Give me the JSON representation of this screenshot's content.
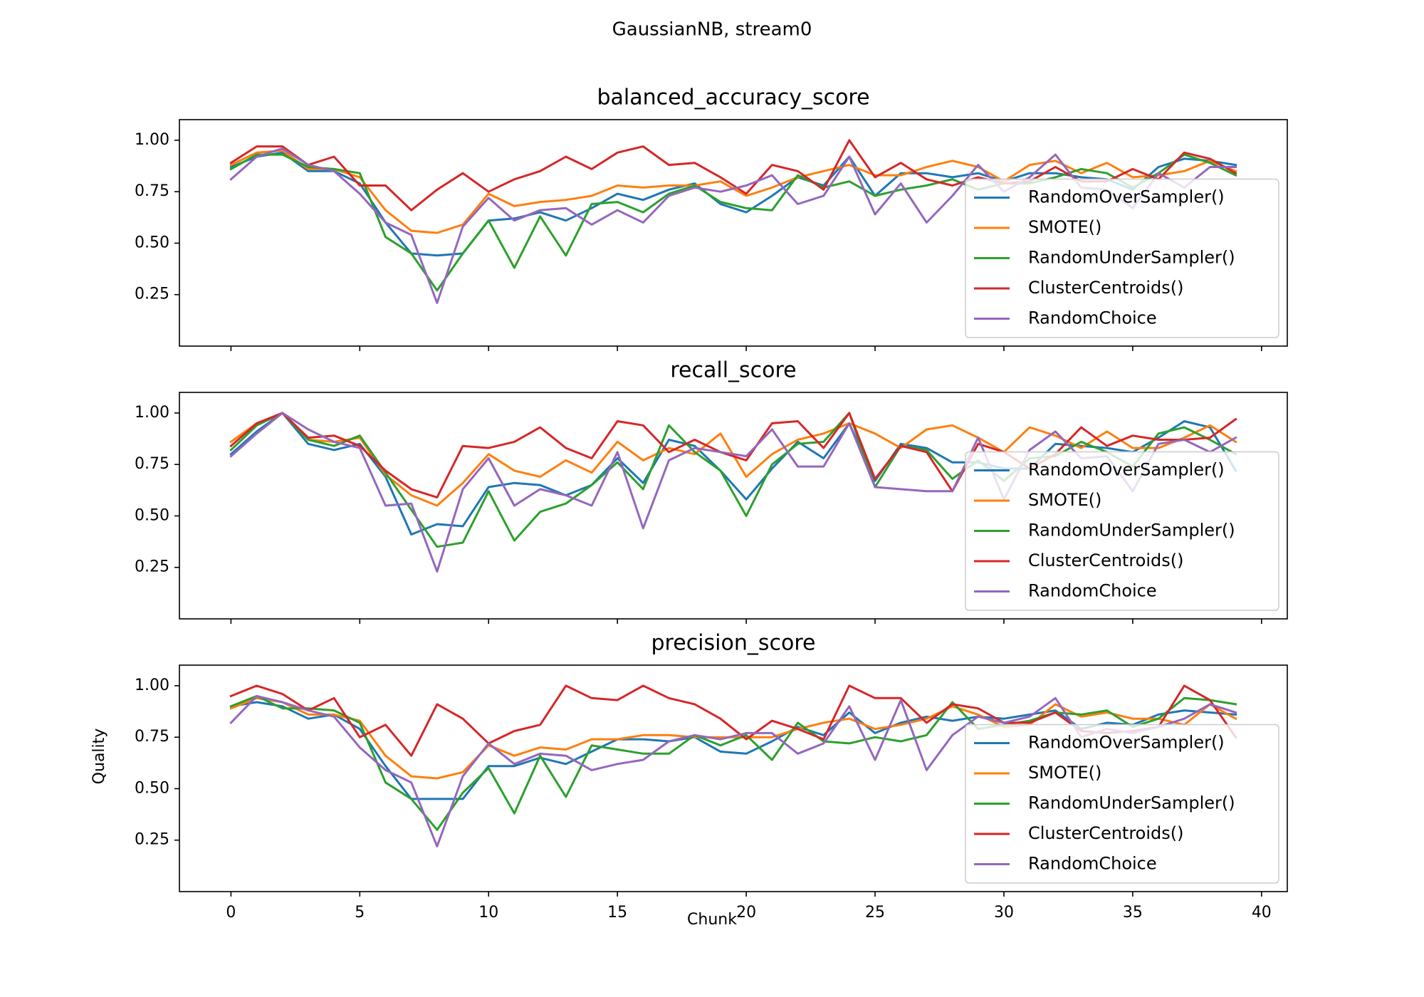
{
  "figure": {
    "suptitle": "GaussianNB, stream0",
    "xlabel": "Chunk",
    "ylabel": "Quality",
    "x_ticks": [
      "0",
      "5",
      "10",
      "15",
      "20",
      "25",
      "30",
      "35",
      "40"
    ],
    "y_ticks": [
      "0.25",
      "0.50",
      "0.75",
      "1.00"
    ]
  },
  "colors": {
    "RandomOverSampler()": "#1f77b4",
    "SMOTE()": "#ff7f0e",
    "RandomUnderSampler()": "#2ca02c",
    "ClusterCentroids()": "#d62728",
    "RandomChoice": "#9467bd"
  },
  "chart_data": [
    {
      "type": "line",
      "title": "balanced_accuracy_score",
      "xlabel": "",
      "ylabel": "",
      "xlim": [
        -2,
        41
      ],
      "ylim": [
        0,
        1.1
      ],
      "grid": false,
      "legend_position": "lower-right",
      "x": [
        0,
        1,
        2,
        3,
        4,
        5,
        6,
        7,
        8,
        9,
        10,
        11,
        12,
        13,
        14,
        15,
        16,
        17,
        18,
        19,
        20,
        21,
        22,
        23,
        24,
        25,
        26,
        27,
        28,
        29,
        30,
        31,
        32,
        33,
        34,
        35,
        36,
        37,
        38,
        39
      ],
      "series": [
        {
          "name": "RandomOverSampler()",
          "values": [
            0.87,
            0.92,
            0.94,
            0.85,
            0.85,
            0.79,
            0.6,
            0.45,
            0.44,
            0.45,
            0.61,
            0.62,
            0.65,
            0.61,
            0.67,
            0.74,
            0.71,
            0.76,
            0.79,
            0.69,
            0.65,
            0.73,
            0.82,
            0.78,
            0.92,
            0.73,
            0.84,
            0.84,
            0.82,
            0.84,
            0.8,
            0.84,
            0.84,
            0.82,
            0.81,
            0.76,
            0.87,
            0.91,
            0.9,
            0.88
          ]
        },
        {
          "name": "SMOTE()",
          "values": [
            0.88,
            0.94,
            0.95,
            0.86,
            0.86,
            0.82,
            0.66,
            0.56,
            0.55,
            0.59,
            0.74,
            0.68,
            0.7,
            0.71,
            0.73,
            0.78,
            0.77,
            0.78,
            0.78,
            0.8,
            0.73,
            0.77,
            0.82,
            0.85,
            0.88,
            0.83,
            0.83,
            0.87,
            0.9,
            0.87,
            0.8,
            0.88,
            0.9,
            0.84,
            0.89,
            0.82,
            0.83,
            0.85,
            0.9,
            0.85
          ]
        },
        {
          "name": "RandomUnderSampler()",
          "values": [
            0.86,
            0.93,
            0.93,
            0.87,
            0.86,
            0.84,
            0.53,
            0.45,
            0.27,
            0.45,
            0.61,
            0.38,
            0.63,
            0.44,
            0.69,
            0.7,
            0.65,
            0.74,
            0.78,
            0.7,
            0.67,
            0.66,
            0.83,
            0.77,
            0.8,
            0.73,
            0.76,
            0.78,
            0.81,
            0.76,
            0.79,
            0.79,
            0.82,
            0.86,
            0.84,
            0.77,
            0.84,
            0.93,
            0.89,
            0.83
          ]
        },
        {
          "name": "ClusterCentroids()",
          "values": [
            0.89,
            0.97,
            0.97,
            0.88,
            0.92,
            0.78,
            0.78,
            0.66,
            0.76,
            0.84,
            0.75,
            0.81,
            0.85,
            0.92,
            0.86,
            0.94,
            0.97,
            0.88,
            0.89,
            0.82,
            0.74,
            0.88,
            0.85,
            0.76,
            1.0,
            0.82,
            0.89,
            0.81,
            0.78,
            0.82,
            0.79,
            0.8,
            0.87,
            0.8,
            0.8,
            0.86,
            0.81,
            0.94,
            0.91,
            0.84
          ]
        },
        {
          "name": "RandomChoice",
          "values": [
            0.81,
            0.92,
            0.96,
            0.88,
            0.85,
            0.74,
            0.6,
            0.54,
            0.21,
            0.58,
            0.72,
            0.61,
            0.66,
            0.67,
            0.59,
            0.66,
            0.6,
            0.73,
            0.77,
            0.75,
            0.78,
            0.83,
            0.69,
            0.73,
            0.92,
            0.64,
            0.79,
            0.6,
            0.73,
            0.88,
            0.75,
            0.82,
            0.93,
            0.77,
            0.76,
            0.67,
            0.84,
            0.77,
            0.87,
            0.87
          ]
        }
      ]
    },
    {
      "type": "line",
      "title": "recall_score",
      "xlabel": "",
      "ylabel": "",
      "xlim": [
        -2,
        41
      ],
      "ylim": [
        0,
        1.1
      ],
      "grid": false,
      "legend_position": "lower-right",
      "x": [
        0,
        1,
        2,
        3,
        4,
        5,
        6,
        7,
        8,
        9,
        10,
        11,
        12,
        13,
        14,
        15,
        16,
        17,
        18,
        19,
        20,
        21,
        22,
        23,
        24,
        25,
        26,
        27,
        28,
        29,
        30,
        31,
        32,
        33,
        34,
        35,
        36,
        37,
        38,
        39
      ],
      "series": [
        {
          "name": "RandomOverSampler()",
          "values": [
            0.8,
            0.91,
            1.0,
            0.85,
            0.82,
            0.85,
            0.69,
            0.41,
            0.46,
            0.45,
            0.64,
            0.66,
            0.65,
            0.6,
            0.65,
            0.78,
            0.66,
            0.87,
            0.84,
            0.72,
            0.58,
            0.73,
            0.86,
            0.78,
            0.95,
            0.67,
            0.85,
            0.83,
            0.76,
            0.76,
            0.73,
            0.73,
            0.85,
            0.84,
            0.83,
            0.81,
            0.88,
            0.96,
            0.93,
            0.72
          ]
        },
        {
          "name": "SMOTE()",
          "values": [
            0.86,
            0.95,
            1.0,
            0.87,
            0.86,
            0.88,
            0.7,
            0.6,
            0.55,
            0.66,
            0.8,
            0.72,
            0.69,
            0.77,
            0.71,
            0.86,
            0.77,
            0.83,
            0.8,
            0.9,
            0.69,
            0.8,
            0.87,
            0.9,
            0.95,
            0.9,
            0.83,
            0.92,
            0.94,
            0.88,
            0.81,
            0.93,
            0.89,
            0.83,
            0.91,
            0.83,
            0.83,
            0.88,
            0.94,
            0.86
          ]
        },
        {
          "name": "RandomUnderSampler()",
          "values": [
            0.82,
            0.94,
            1.0,
            0.87,
            0.84,
            0.89,
            0.71,
            0.53,
            0.35,
            0.37,
            0.62,
            0.38,
            0.52,
            0.56,
            0.65,
            0.76,
            0.63,
            0.94,
            0.81,
            0.72,
            0.5,
            0.75,
            0.85,
            0.86,
            1.0,
            0.64,
            0.84,
            0.82,
            0.68,
            0.77,
            0.67,
            0.78,
            0.79,
            0.86,
            0.81,
            0.74,
            0.9,
            0.93,
            0.87,
            0.8
          ]
        },
        {
          "name": "ClusterCentroids()",
          "values": [
            0.84,
            0.95,
            1.0,
            0.88,
            0.89,
            0.84,
            0.72,
            0.63,
            0.59,
            0.84,
            0.83,
            0.86,
            0.93,
            0.83,
            0.78,
            0.96,
            0.94,
            0.81,
            0.87,
            0.81,
            0.77,
            0.95,
            0.96,
            0.83,
            1.0,
            0.68,
            0.84,
            0.81,
            0.62,
            0.85,
            0.81,
            0.73,
            0.8,
            0.93,
            0.84,
            0.89,
            0.87,
            0.87,
            0.88,
            0.97
          ]
        },
        {
          "name": "RandomChoice",
          "values": [
            0.79,
            0.9,
            1.0,
            0.92,
            0.86,
            0.83,
            0.55,
            0.56,
            0.23,
            0.63,
            0.78,
            0.55,
            0.63,
            0.6,
            0.55,
            0.81,
            0.44,
            0.77,
            0.83,
            0.81,
            0.79,
            0.92,
            0.74,
            0.74,
            0.95,
            0.64,
            0.63,
            0.62,
            0.62,
            0.88,
            0.58,
            0.82,
            0.91,
            0.78,
            0.79,
            0.62,
            0.85,
            0.87,
            0.81,
            0.88
          ]
        }
      ]
    },
    {
      "type": "line",
      "title": "precision_score",
      "xlabel": "Chunk",
      "ylabel": "Quality",
      "xlim": [
        -2,
        41
      ],
      "ylim": [
        0,
        1.1
      ],
      "grid": false,
      "legend_position": "lower-right",
      "x": [
        0,
        1,
        2,
        3,
        4,
        5,
        6,
        7,
        8,
        9,
        10,
        11,
        12,
        13,
        14,
        15,
        16,
        17,
        18,
        19,
        20,
        21,
        22,
        23,
        24,
        25,
        26,
        27,
        28,
        29,
        30,
        31,
        32,
        33,
        34,
        35,
        36,
        37,
        38,
        39
      ],
      "series": [
        {
          "name": "RandomOverSampler()",
          "values": [
            0.9,
            0.92,
            0.9,
            0.84,
            0.86,
            0.79,
            0.61,
            0.45,
            0.45,
            0.45,
            0.61,
            0.61,
            0.65,
            0.62,
            0.68,
            0.74,
            0.74,
            0.73,
            0.75,
            0.68,
            0.67,
            0.73,
            0.8,
            0.76,
            0.87,
            0.77,
            0.82,
            0.85,
            0.83,
            0.85,
            0.84,
            0.86,
            0.88,
            0.79,
            0.82,
            0.81,
            0.86,
            0.88,
            0.87,
            0.86
          ]
        },
        {
          "name": "SMOTE()",
          "values": [
            0.89,
            0.94,
            0.92,
            0.86,
            0.86,
            0.83,
            0.66,
            0.56,
            0.55,
            0.58,
            0.71,
            0.66,
            0.7,
            0.69,
            0.74,
            0.74,
            0.76,
            0.76,
            0.75,
            0.75,
            0.75,
            0.75,
            0.79,
            0.82,
            0.84,
            0.79,
            0.81,
            0.84,
            0.9,
            0.86,
            0.8,
            0.81,
            0.91,
            0.85,
            0.87,
            0.84,
            0.84,
            0.81,
            0.91,
            0.84
          ]
        },
        {
          "name": "RandomUnderSampler()",
          "values": [
            0.9,
            0.95,
            0.89,
            0.89,
            0.88,
            0.82,
            0.53,
            0.45,
            0.3,
            0.48,
            0.6,
            0.38,
            0.66,
            0.46,
            0.71,
            0.69,
            0.67,
            0.67,
            0.76,
            0.71,
            0.76,
            0.64,
            0.82,
            0.73,
            0.72,
            0.75,
            0.73,
            0.76,
            0.92,
            0.79,
            0.81,
            0.83,
            0.87,
            0.86,
            0.88,
            0.8,
            0.84,
            0.94,
            0.93,
            0.91
          ]
        },
        {
          "name": "ClusterCentroids()",
          "values": [
            0.95,
            1.0,
            0.96,
            0.88,
            0.94,
            0.75,
            0.81,
            0.66,
            0.91,
            0.84,
            0.72,
            0.78,
            0.81,
            1.0,
            0.94,
            0.93,
            1.0,
            0.94,
            0.91,
            0.84,
            0.74,
            0.83,
            0.79,
            0.74,
            1.0,
            0.94,
            0.94,
            0.82,
            0.91,
            0.89,
            0.82,
            0.82,
            0.87,
            0.78,
            0.77,
            0.78,
            0.8,
            1.0,
            0.93,
            0.75
          ]
        },
        {
          "name": "RandomChoice",
          "values": [
            0.82,
            0.95,
            0.92,
            0.88,
            0.85,
            0.7,
            0.59,
            0.53,
            0.22,
            0.56,
            0.72,
            0.62,
            0.67,
            0.66,
            0.59,
            0.62,
            0.64,
            0.73,
            0.76,
            0.74,
            0.77,
            0.77,
            0.67,
            0.72,
            0.9,
            0.64,
            0.93,
            0.59,
            0.76,
            0.85,
            0.82,
            0.85,
            0.94,
            0.75,
            0.79,
            0.77,
            0.8,
            0.84,
            0.91,
            0.87
          ]
        }
      ]
    }
  ]
}
